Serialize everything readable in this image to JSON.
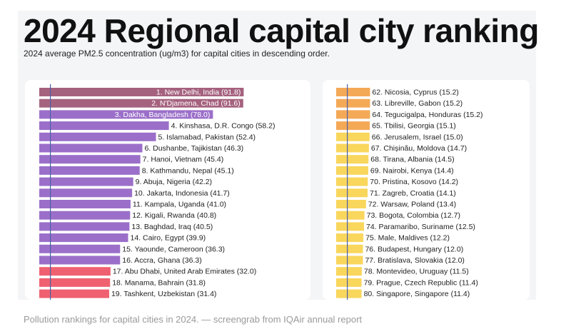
{
  "header": {
    "title": "2024 Regional capital city ranking",
    "subtitle": "2024 average PM2.5 concentration (ug/m3) for capital cities in descending order."
  },
  "caption": "Pollution rankings for capital cities in 2024. — screengrab from IQAir annual report",
  "chart_data": [
    {
      "type": "bar",
      "orientation": "horizontal",
      "title": "2024 Regional capital city ranking",
      "unit": "ug/m3",
      "reference_line_value": 5,
      "xlim": [
        0,
        100
      ],
      "categories": [
        "1. New Delhi, India (91.8)",
        "2. N'Djamena, Chad (91.6)",
        "3. Dakha, Bangladesh (78.0)",
        "4. Kinshasa, D.R. Congo (58.2)",
        "5. Islamabad, Pakistan (52.4)",
        "6. Dushanbe, Tajikistan (46.3)",
        "7. Hanoi, Vietnam (45.4)",
        "8. Kathmandu, Nepal (45.1)",
        "9. Abuja, Nigeria (42.2)",
        "10. Jakarta, Indonesia (41.7)",
        "11. Kampala, Uganda (41.0)",
        "12. Kigali, Rwanda (40.8)",
        "13. Baghdad, Iraq (40.5)",
        "14. Cairo, Egypt (39.9)",
        "15. Yaounde, Cameroon (36.3)",
        "16. Accra, Ghana (36.3)",
        "17. Abu Dhabi, United Arab Emirates (32.0)",
        "18. Manama, Bahrain (31.8)",
        "19. Tashkent, Uzbekistan (31.4)"
      ],
      "values": [
        91.8,
        91.6,
        78.0,
        58.2,
        52.4,
        46.3,
        45.4,
        45.1,
        42.2,
        41.7,
        41.0,
        40.8,
        40.5,
        39.9,
        36.3,
        36.3,
        32.0,
        31.8,
        31.4
      ],
      "colors": [
        "#a5627e",
        "#a5627e",
        "#9b6fc9",
        "#9b6fc9",
        "#9b6fc9",
        "#9b6fc9",
        "#9b6fc9",
        "#9b6fc9",
        "#9b6fc9",
        "#9b6fc9",
        "#9b6fc9",
        "#9b6fc9",
        "#9b6fc9",
        "#9b6fc9",
        "#9b6fc9",
        "#9b6fc9",
        "#ef6170",
        "#ef6170",
        "#ef6170"
      ],
      "label_inside": [
        true,
        true,
        true,
        false,
        false,
        false,
        false,
        false,
        false,
        false,
        false,
        false,
        false,
        false,
        false,
        false,
        false,
        false,
        false
      ]
    },
    {
      "type": "bar",
      "orientation": "horizontal",
      "unit": "ug/m3",
      "reference_line_value": 5,
      "xlim": [
        0,
        100
      ],
      "categories": [
        "62. Nicosia, Cyprus (15.2)",
        "63. Libreville, Gabon (15.2)",
        "64. Tegucigalpa, Honduras (15.2)",
        "65. Tbilisi, Georgia (15.1)",
        "66. Jerusalem, Israel (15.0)",
        "67. Chișinău, Moldova (14.7)",
        "68. Tirana, Albania (14.5)",
        "69. Nairobi, Kenya (14.4)",
        "70. Pristina, Kosovo (14.2)",
        "71. Zagreb, Croatia (14.1)",
        "72. Warsaw, Poland (13.4)",
        "73. Bogota, Colombia (12.7)",
        "74. Paramaribo, Suriname (12.5)",
        "75. Male, Maldives (12.2)",
        "76. Budapest, Hungary (12.0)",
        "77. Bratislava, Slovakia (12.0)",
        "78. Montevideo, Uruguay (11.5)",
        "79. Prague, Czech Republic (11.4)",
        "80. Singapore, Singapore (11.4)"
      ],
      "values": [
        15.2,
        15.2,
        15.2,
        15.1,
        15.0,
        14.7,
        14.5,
        14.4,
        14.2,
        14.1,
        13.4,
        12.7,
        12.5,
        12.2,
        12.0,
        12.0,
        11.5,
        11.4,
        11.4
      ],
      "colors": [
        "#f4a957",
        "#f4a957",
        "#f4a957",
        "#f4a957",
        "#f9d65c",
        "#f9d65c",
        "#f9d65c",
        "#f9d65c",
        "#f9d65c",
        "#f9d65c",
        "#f9d65c",
        "#f9d65c",
        "#f9d65c",
        "#f9d65c",
        "#f9d65c",
        "#f9d65c",
        "#f9d65c",
        "#f9d65c",
        "#f9d65c"
      ],
      "label_inside": [
        false,
        false,
        false,
        false,
        false,
        false,
        false,
        false,
        false,
        false,
        false,
        false,
        false,
        false,
        false,
        false,
        false,
        false,
        false
      ]
    }
  ]
}
